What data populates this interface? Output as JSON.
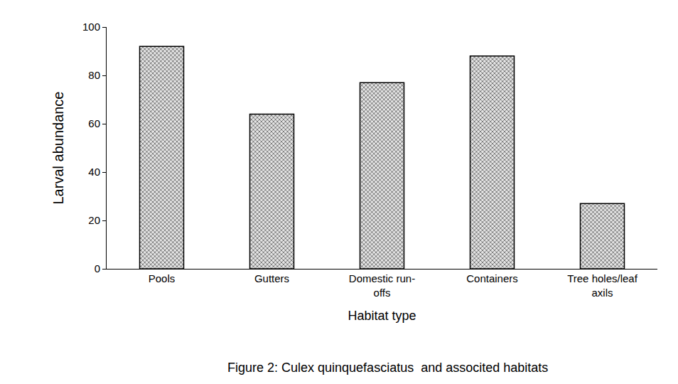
{
  "chart_data": {
    "type": "bar",
    "title": "Figure 2: Culex quinquefasciatus  and associted habitats",
    "xlabel": "Habitat type",
    "ylabel": "Larval abundance",
    "categories": [
      "Pools",
      "Gutters",
      "Domestic run-offs",
      "Containers",
      "Tree holes/leaf axils"
    ],
    "values": [
      92,
      64,
      77,
      88,
      27
    ],
    "color": "#555555",
    "ylim": [
      0,
      100
    ],
    "yticks": [
      0,
      20,
      40,
      60,
      80,
      100
    ],
    "grid": false
  }
}
